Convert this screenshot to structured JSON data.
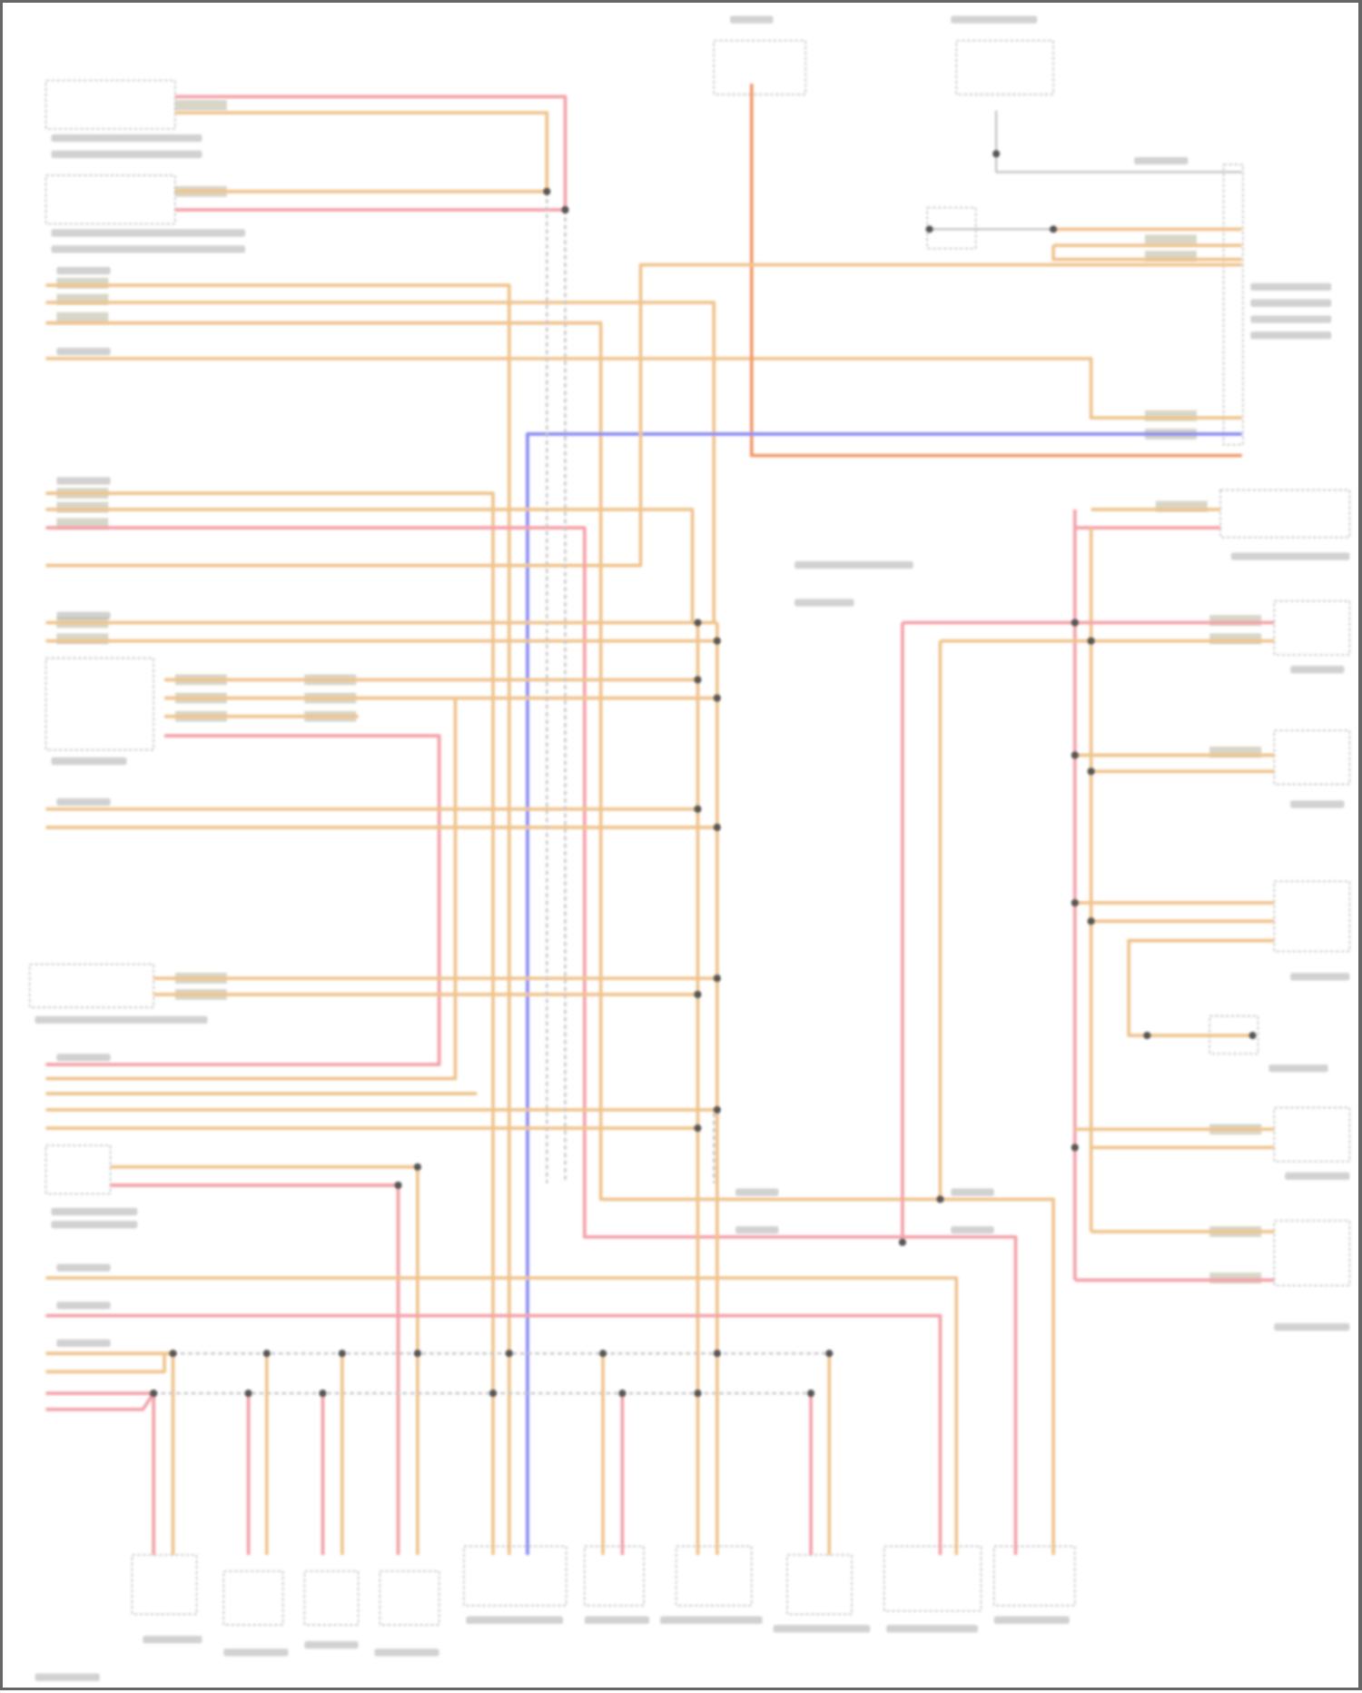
{
  "diagram": {
    "type": "wiring-schematic",
    "text_legible": false,
    "wire_colors": {
      "tan": "#f0c48e",
      "pink": "#f4a2a8",
      "orange": "#f29a6c",
      "blue": "#8d8ef0",
      "gray": "#c4c4c4"
    },
    "component_outline_color": "#c8c8c8",
    "label_color": "#9a9a9a",
    "junction_color": "#555555"
  }
}
